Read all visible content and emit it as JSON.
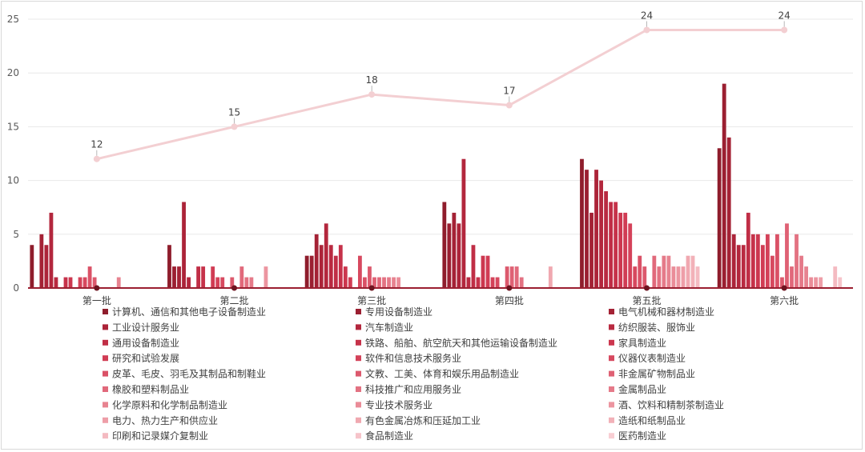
{
  "chart_data": {
    "type": "bar",
    "categories": [
      "第一批",
      "第二批",
      "第三批",
      "第四批",
      "第五批",
      "第六批"
    ],
    "ylim": [
      0,
      25
    ],
    "yticks": [
      0,
      5,
      10,
      15,
      20,
      25
    ],
    "grid": true,
    "legend_position": "bottom",
    "series": [
      {
        "name": "计算机、通信和其他电子设备制造业",
        "color": "#8f1d2c",
        "values": [
          4,
          4,
          3,
          8,
          12,
          13
        ]
      },
      {
        "name": "专用设备制造业",
        "color": "#9b1f31",
        "values": [
          0,
          2,
          3,
          6,
          11,
          19
        ]
      },
      {
        "name": "电气机械和器材制造业",
        "color": "#a42235",
        "values": [
          5,
          2,
          5,
          7,
          7,
          14
        ]
      },
      {
        "name": "工业设计服务业",
        "color": "#ac2439",
        "values": [
          4,
          8,
          4,
          6,
          11,
          5
        ]
      },
      {
        "name": "汽车制造业",
        "color": "#b3273d",
        "values": [
          7,
          1,
          6,
          12,
          10,
          4
        ]
      },
      {
        "name": "纺织服装、服饰业",
        "color": "#b92a41",
        "values": [
          1,
          0,
          4,
          1,
          9,
          4
        ]
      },
      {
        "name": "通用设备制造业",
        "color": "#c02e46",
        "values": [
          0,
          2,
          3,
          4,
          8,
          7
        ]
      },
      {
        "name": "铁路、船舶、航空航天和其他运输设备制造业",
        "color": "#c6324a",
        "values": [
          1,
          2,
          4,
          1,
          8,
          5
        ]
      },
      {
        "name": "家具制造业",
        "color": "#cc374f",
        "values": [
          1,
          0,
          2,
          3,
          7,
          5
        ]
      },
      {
        "name": "研究和试验发展",
        "color": "#d13c54",
        "values": [
          0,
          2,
          1,
          3,
          7,
          4
        ]
      },
      {
        "name": "软件和信息技术服务业",
        "color": "#d44259",
        "values": [
          1,
          1,
          0,
          1,
          6,
          5
        ]
      },
      {
        "name": "仪器仪表制造业",
        "color": "#d7495f",
        "values": [
          1,
          1,
          3,
          1,
          2,
          3
        ]
      },
      {
        "name": "皮革、毛皮、羽毛及其制品和制鞋业",
        "color": "#da5166",
        "values": [
          2,
          0,
          1,
          0,
          3,
          5
        ]
      },
      {
        "name": "文教、工美、体育和娱乐用品制造业",
        "color": "#dc596d",
        "values": [
          1,
          1,
          2,
          2,
          2,
          1
        ]
      },
      {
        "name": "非金属矿物制品业",
        "color": "#df6174",
        "values": [
          0,
          0,
          1,
          2,
          0,
          6
        ]
      },
      {
        "name": "橡胶和塑料制品业",
        "color": "#e1697b",
        "values": [
          0,
          2,
          1,
          2,
          3,
          2
        ]
      },
      {
        "name": "科技推广和应用服务业",
        "color": "#e37282",
        "values": [
          0,
          1,
          1,
          1,
          2,
          5
        ]
      },
      {
        "name": "金属制品业",
        "color": "#e57a89",
        "values": [
          0,
          1,
          1,
          0,
          3,
          3
        ]
      },
      {
        "name": "化学原料和化学制品制造业",
        "color": "#e78390",
        "values": [
          1,
          0,
          1,
          0,
          3,
          2
        ]
      },
      {
        "name": "专业技术服务业",
        "color": "#ea8c98",
        "values": [
          0,
          0,
          1,
          0,
          2,
          1
        ]
      },
      {
        "name": "酒、饮料和精制茶制造业",
        "color": "#ec95a0",
        "values": [
          0,
          2,
          0,
          0,
          2,
          1
        ]
      },
      {
        "name": "电力、热力生产和供应业",
        "color": "#ee9ea8",
        "values": [
          0,
          0,
          0,
          0,
          2,
          1
        ]
      },
      {
        "name": "有色金属冶炼和压延加工业",
        "color": "#f0a8b0",
        "values": [
          0,
          0,
          0,
          2,
          3,
          0
        ]
      },
      {
        "name": "造纸和纸制品业",
        "color": "#f2b1b8",
        "values": [
          0,
          0,
          0,
          0,
          3,
          0
        ]
      },
      {
        "name": "印刷和记录媒介复制业",
        "color": "#f4bac1",
        "values": [
          0,
          0,
          0,
          0,
          2,
          2
        ]
      },
      {
        "name": "食品制造业",
        "color": "#f6c4ca",
        "values": [
          0,
          0,
          0,
          0,
          0,
          1
        ]
      },
      {
        "name": "医药制造业",
        "color": "#f8ced3",
        "values": [
          0,
          0,
          0,
          0,
          0,
          0
        ]
      }
    ],
    "line": {
      "values": [
        12,
        15,
        18,
        17,
        24,
        24
      ],
      "color": "#f3cfd2"
    }
  }
}
